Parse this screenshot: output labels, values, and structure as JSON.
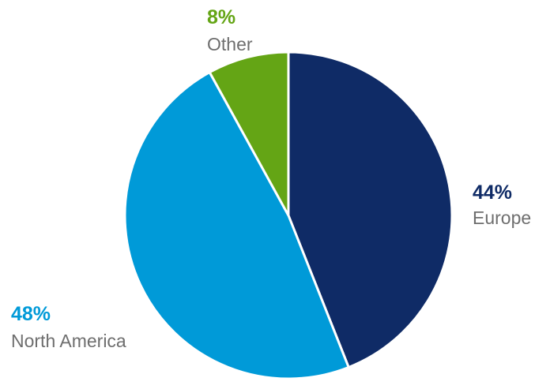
{
  "chart_data": {
    "type": "pie",
    "title": "",
    "slices": [
      {
        "label": "Europe",
        "value": 44,
        "value_label": "44%",
        "color": "#0f2b66"
      },
      {
        "label": "North America",
        "value": 48,
        "value_label": "48%",
        "color": "#009ad8"
      },
      {
        "label": "Other",
        "value": 8,
        "value_label": "8%",
        "color": "#64a515"
      }
    ],
    "start_angle": "top (12 o'clock)",
    "direction": "clockwise",
    "legend": "none (direct labels)"
  }
}
